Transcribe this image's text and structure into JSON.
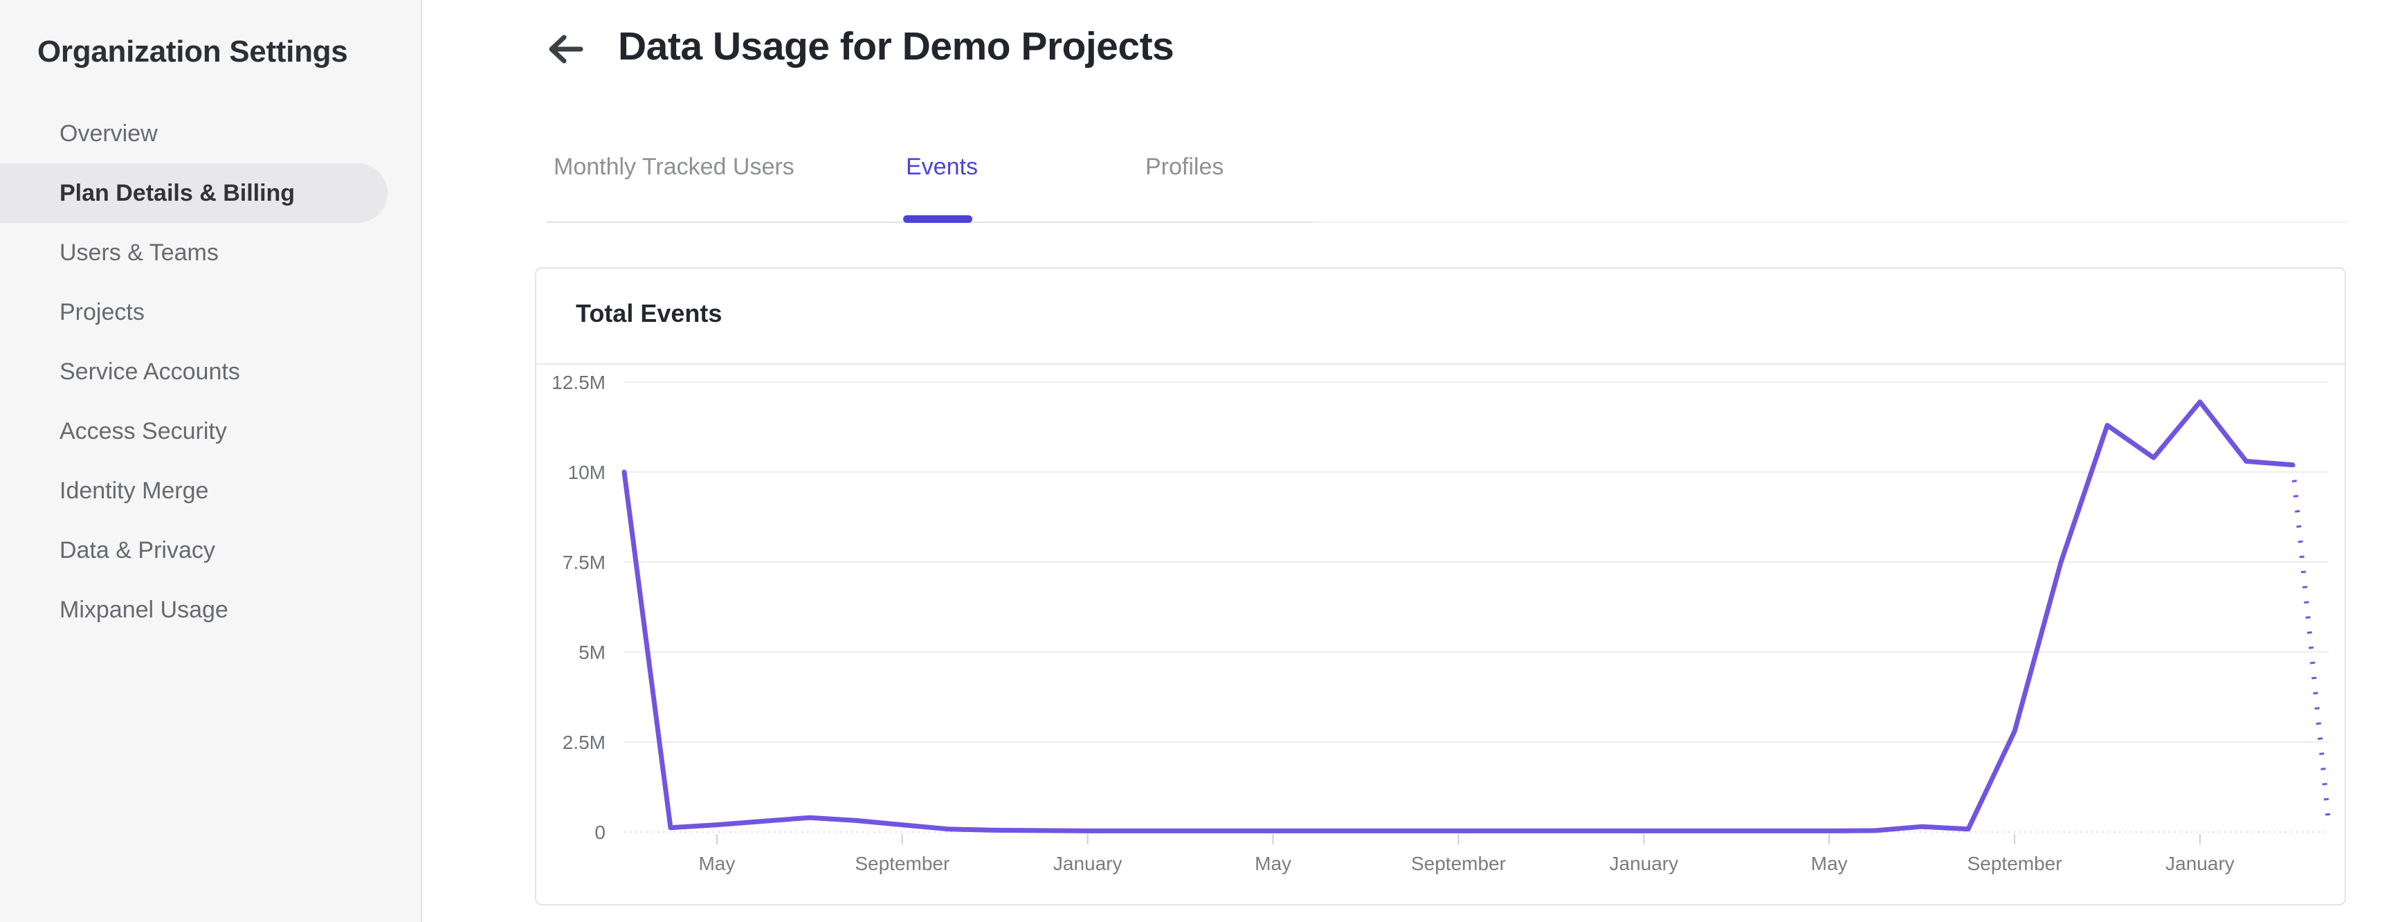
{
  "sidebar": {
    "title": "Organization Settings",
    "items": [
      {
        "label": "Overview",
        "active": false
      },
      {
        "label": "Plan Details & Billing",
        "active": true
      },
      {
        "label": "Users & Teams",
        "active": false
      },
      {
        "label": "Projects",
        "active": false
      },
      {
        "label": "Service Accounts",
        "active": false
      },
      {
        "label": "Access Security",
        "active": false
      },
      {
        "label": "Identity Merge",
        "active": false
      },
      {
        "label": "Data & Privacy",
        "active": false
      },
      {
        "label": "Mixpanel Usage",
        "active": false
      }
    ]
  },
  "header": {
    "title": "Data Usage for Demo Projects",
    "back_icon": "left-arrow"
  },
  "tabs": {
    "items": [
      {
        "label": "Monthly Tracked Users",
        "active": false
      },
      {
        "label": "Events",
        "active": true
      },
      {
        "label": "Profiles",
        "active": false
      }
    ]
  },
  "card": {
    "title": "Total Events"
  },
  "colors": {
    "accent": "#4E42DC",
    "chart_line": "#7155E0",
    "sidebar_bg": "#F6F6F7",
    "sidebar_active_bg": "#E8E8EA",
    "card_border": "#E4E4E6",
    "gridline": "#EDEDEF",
    "zero_line": "#D8D8DA",
    "tick": "#CFCFD2",
    "y_axis_text": "#6F7276",
    "x_axis_text": "#797C80",
    "tab_inactive_text": "#8E9094",
    "nav_text": "#66696E",
    "dark_text": "#24282E"
  },
  "chart_data": {
    "type": "line",
    "title": "Total Events",
    "xlabel": "",
    "ylabel": "",
    "x_unit": "month",
    "start_month": "March (year 1)",
    "months_spanned": 37,
    "x_tick_labels": [
      "May",
      "September",
      "January",
      "May",
      "September",
      "January",
      "May",
      "September",
      "January"
    ],
    "x_tick_indices": [
      2,
      6,
      10,
      14,
      18,
      22,
      26,
      30,
      34
    ],
    "y_tick_labels": [
      "12.5M",
      "10M",
      "7.5M",
      "5M",
      "2.5M",
      "0"
    ],
    "y_tick_values_millions": [
      12.5,
      10,
      7.5,
      5,
      2.5,
      0
    ],
    "ylim_millions": [
      0,
      12.5
    ],
    "grid": "horizontal",
    "legend": "none",
    "series": [
      {
        "name": "Total Events",
        "style": "solid",
        "values_millions": [
          10,
          0.12,
          0.2,
          0.3,
          0.4,
          0.32,
          0.2,
          0.08,
          0.05,
          0.04,
          0.03,
          0.03,
          0.03,
          0.03,
          0.03,
          0.03,
          0.03,
          0.03,
          0.03,
          0.03,
          0.03,
          0.03,
          0.03,
          0.03,
          0.03,
          0.03,
          0.03,
          0.04,
          0.15,
          0.08,
          2.8,
          7.5,
          11.3,
          10.4,
          11.95,
          10.3,
          10.2
        ]
      }
    ],
    "projection_dotted": {
      "from_month_index": 36,
      "from_value_millions": 10.2,
      "to_month_index": 36.76,
      "to_value_millions": 0.45,
      "note": "dotted tail for incomplete current month"
    }
  }
}
